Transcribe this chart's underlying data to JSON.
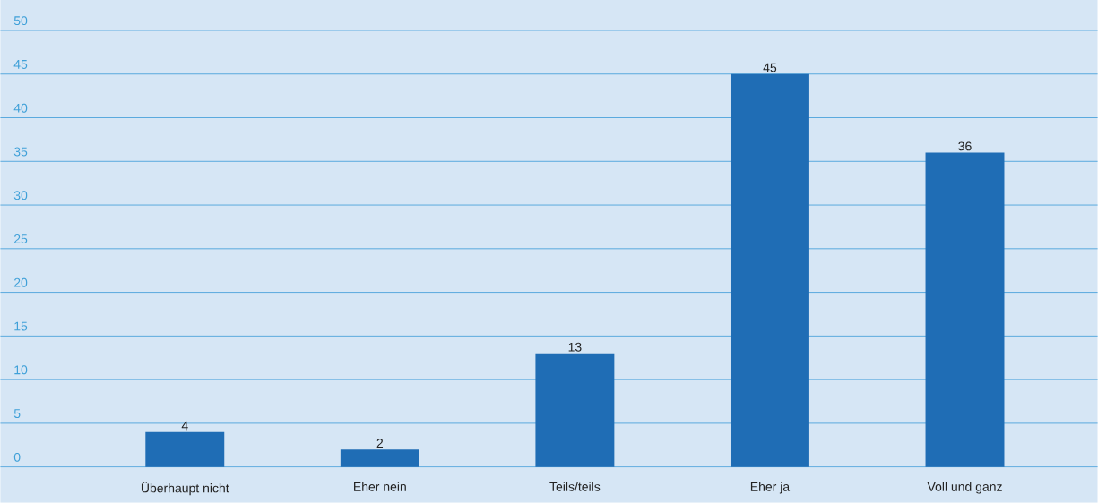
{
  "chart_data": {
    "type": "bar",
    "categories": [
      "Überhaupt nicht",
      "Eher nein",
      "Teils/teils",
      "Eher ja",
      "Voll und ganz"
    ],
    "values": [
      4,
      2,
      13,
      45,
      36
    ],
    "color": "#1f6db5",
    "ylim": [
      0,
      50
    ],
    "yticks": [
      0,
      5,
      10,
      15,
      20,
      25,
      30,
      35,
      40,
      45,
      50
    ],
    "grid": "y",
    "data_labels": true
  }
}
